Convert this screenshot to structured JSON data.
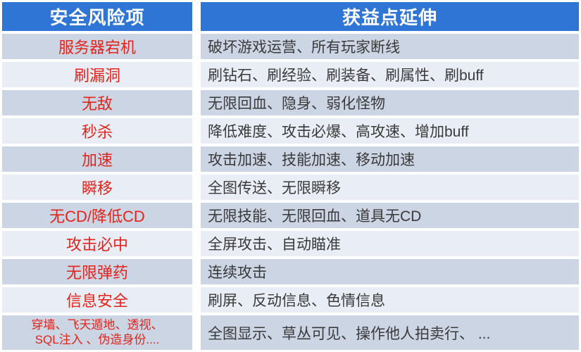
{
  "colors": {
    "header_bg": "#2e75d6",
    "header_text": "#ffffff",
    "row_odd_bg": "#ccd5e3",
    "row_even_bg": "#e9edf5",
    "risk_text": "#e2241c",
    "benefit_text": "#3a3a3a",
    "border": "#ffffff"
  },
  "table": {
    "headers": [
      "安全风险项",
      "获益点延伸"
    ],
    "rows": [
      {
        "risk": "服务器宕机",
        "benefit": "破坏游戏运营、所有玩家断线"
      },
      {
        "risk": "刷漏洞",
        "benefit": "刷钻石、刷经验、刷装备、刷属性、刷buff"
      },
      {
        "risk": "无敌",
        "benefit": "无限回血、隐身、弱化怪物"
      },
      {
        "risk": "秒杀",
        "benefit": "降低难度、攻击必爆、高攻速、增加buff"
      },
      {
        "risk": "加速",
        "benefit": "攻击加速、技能加速、移动加速"
      },
      {
        "risk": "瞬移",
        "benefit": "全图传送、无限瞬移"
      },
      {
        "risk": "无CD/降低CD",
        "benefit": "无限技能、无限回血、道具无CD"
      },
      {
        "risk": "攻击必中",
        "benefit": "全屏攻击、自动瞄准"
      },
      {
        "risk": "无限弹药",
        "benefit": "连续攻击"
      },
      {
        "risk": "信息安全",
        "benefit": "刷屏、反动信息、色情信息"
      },
      {
        "risk": "穿墙、飞天遁地、透视、\nSQL注入 、伪造身份....",
        "benefit": "全图显示、草丛可见、操作他人拍卖行、 ..."
      }
    ]
  }
}
